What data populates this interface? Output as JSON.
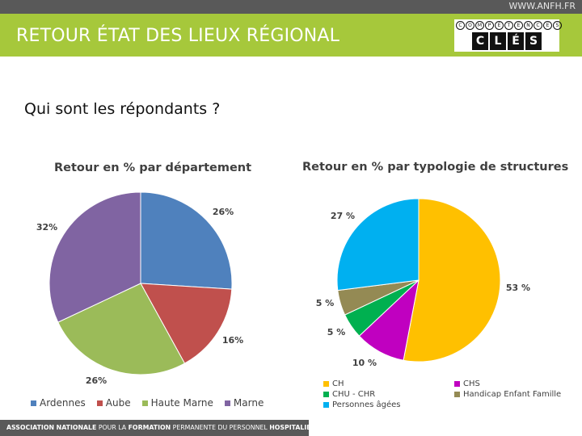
{
  "header": {
    "url": "WWW.ANFH.FR",
    "title": "RETOUR ÉTAT DES LIEUX RÉGIONAL"
  },
  "logo": {
    "top_letters": [
      "C",
      "O",
      "M",
      "P",
      "É",
      "T",
      "E",
      "N",
      "C",
      "E",
      "S"
    ],
    "bottom_letters": [
      "C",
      "L",
      "É",
      "S"
    ]
  },
  "subtitle": "Qui sont les répondants ?",
  "chart_data": [
    {
      "type": "pie",
      "title": "Retour en % par département",
      "categories": [
        "Ardennes",
        "Aube",
        "Haute Marne",
        "Marne"
      ],
      "values": [
        26,
        16,
        26,
        32
      ],
      "labels": [
        "26%",
        "16%",
        "26%",
        "32%"
      ],
      "colors": [
        "#4f81bd",
        "#c0504d",
        "#9bbb59",
        "#8064a2"
      ],
      "legend": "bottom"
    },
    {
      "type": "pie",
      "title": "Retour en % par typologie de structures",
      "categories": [
        "CH",
        "CHS",
        "CHU - CHR",
        "Handicap Enfant Famille",
        "Personnes âgées"
      ],
      "values": [
        53,
        10,
        5,
        5,
        27
      ],
      "labels": [
        "53 %",
        "10 %",
        "5 %",
        "5 %",
        "27 %"
      ],
      "colors": [
        "#ffc000",
        "#c000c0",
        "#00b050",
        "#948a54",
        "#00b0f0"
      ],
      "legend": "bottom"
    }
  ],
  "footer": {
    "p1": "ASSOCIATION NATIONALE",
    "p2": " POUR LA ",
    "p3": "FORMATION",
    "p4": " PERMANENTE DU PERSONNEL ",
    "p5": "HOSPITALIER"
  }
}
